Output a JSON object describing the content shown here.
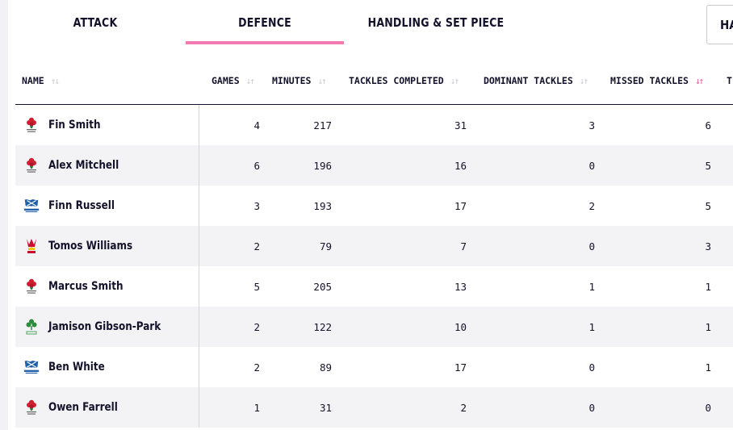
{
  "tabs": [
    {
      "label": "ATTACK",
      "active": false
    },
    {
      "label": "DEFENCE",
      "active": true
    },
    {
      "label": "HANDLING & SET PIECE",
      "active": false
    }
  ],
  "overflow_button_label": "HA",
  "accent_color": "#f27ab0",
  "columns": {
    "name": "NAME",
    "games": "GAMES",
    "minutes": "MINUTES",
    "tackles_completed": "TACKLES COMPLETED",
    "dominant_tackles": "DOMINANT TACKLES",
    "missed_tackles": "MISSED TACKLES",
    "overflow": "T"
  },
  "sorted_column": "missed_tackles",
  "rows": [
    {
      "name": "Fin Smith",
      "team": "england",
      "games": "4",
      "minutes": "217",
      "tackles_completed": "31",
      "dominant_tackles": "3",
      "missed_tackles": "6"
    },
    {
      "name": "Alex Mitchell",
      "team": "england",
      "games": "6",
      "minutes": "196",
      "tackles_completed": "16",
      "dominant_tackles": "0",
      "missed_tackles": "5"
    },
    {
      "name": "Finn Russell",
      "team": "scotland",
      "games": "3",
      "minutes": "193",
      "tackles_completed": "17",
      "dominant_tackles": "2",
      "missed_tackles": "5"
    },
    {
      "name": "Tomos Williams",
      "team": "wales",
      "games": "2",
      "minutes": "79",
      "tackles_completed": "7",
      "dominant_tackles": "0",
      "missed_tackles": "3"
    },
    {
      "name": "Marcus Smith",
      "team": "england",
      "games": "5",
      "minutes": "205",
      "tackles_completed": "13",
      "dominant_tackles": "1",
      "missed_tackles": "1"
    },
    {
      "name": "Jamison Gibson-Park",
      "team": "ireland",
      "games": "2",
      "minutes": "122",
      "tackles_completed": "10",
      "dominant_tackles": "1",
      "missed_tackles": "1"
    },
    {
      "name": "Ben White",
      "team": "scotland",
      "games": "2",
      "minutes": "89",
      "tackles_completed": "17",
      "dominant_tackles": "0",
      "missed_tackles": "1"
    },
    {
      "name": "Owen Farrell",
      "team": "england",
      "games": "1",
      "minutes": "31",
      "tackles_completed": "2",
      "dominant_tackles": "0",
      "missed_tackles": "0"
    }
  ]
}
